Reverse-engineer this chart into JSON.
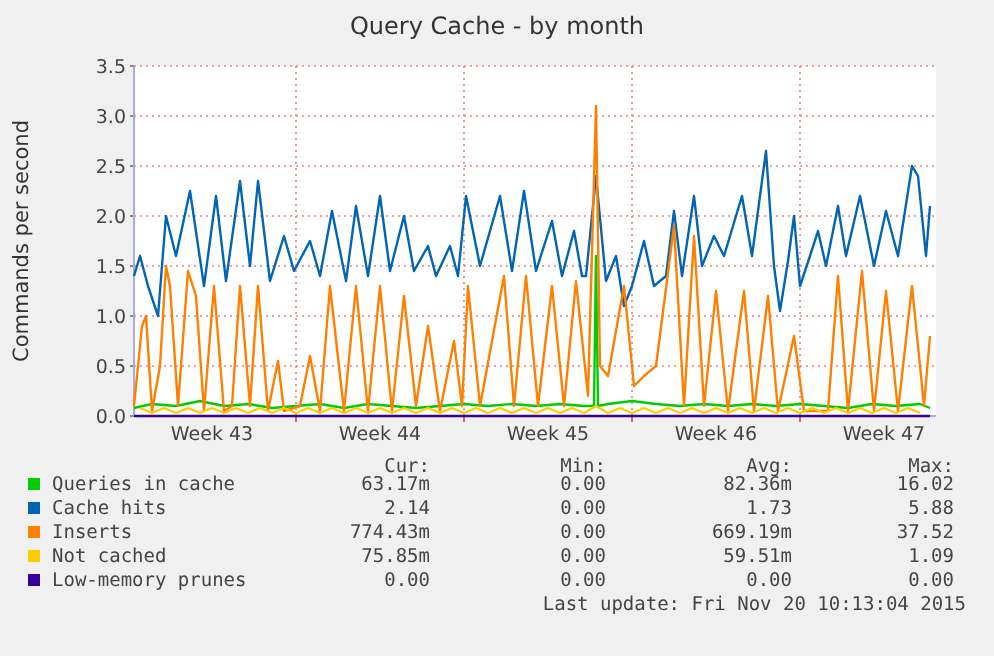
{
  "chart_data": {
    "type": "line",
    "title": "Query Cache - by month",
    "ylabel": "Commands per second",
    "xlim": [
      "2015-10-18T06:00",
      "2015-11-20T16:00"
    ],
    "ylim": [
      0,
      3.5
    ],
    "xticks": [
      {
        "value": "2015-10-21T12:00",
        "label": "Week 43"
      },
      {
        "value": "2015-10-25T00:00",
        "label": null
      },
      {
        "value": "2015-10-28T12:00",
        "label": "Week 44"
      },
      {
        "value": "2015-11-01T00:00",
        "label": null
      },
      {
        "value": "2015-11-04T12:00",
        "label": "Week 45"
      },
      {
        "value": "2015-11-08T00:00",
        "label": null
      },
      {
        "value": "2015-11-11T12:00",
        "label": "Week 46"
      },
      {
        "value": "2015-11-15T00:00",
        "label": null
      },
      {
        "value": "2015-11-18T12:00",
        "label": "Week 47"
      }
    ],
    "yticks": [
      {
        "value": 0,
        "label": "0.0"
      },
      0.5,
      {
        "value": 1,
        "label": "1.0"
      },
      1.5,
      {
        "value": 2,
        "label": "2.0"
      },
      2.5,
      {
        "value": 3,
        "label": "3.0"
      },
      3.5
    ],
    "grid": true,
    "legend": "bottom",
    "series": [
      {
        "name": "Queries in cache",
        "color": "#00cc00",
        "x": [
          "2015-10-18T06:00",
          "2015-10-19T00:00",
          "2015-10-20T00:00",
          "2015-10-21T00:00",
          "2015-10-22T00:00",
          "2015-10-23T00:00",
          "2015-10-24T00:00",
          "2015-10-25T00:00",
          "2015-10-26T00:00",
          "2015-10-27T00:00",
          "2015-10-28T00:00",
          "2015-10-29T00:00",
          "2015-10-30T00:00",
          "2015-10-31T00:00",
          "2015-11-01T00:00",
          "2015-11-02T00:00",
          "2015-11-03T00:00",
          "2015-11-04T00:00",
          "2015-11-05T00:00",
          "2015-11-06T00:00",
          "2015-11-06T10:00",
          "2015-11-06T12:00",
          "2015-11-06T14:00",
          "2015-11-07T00:00",
          "2015-11-08T00:00",
          "2015-11-09T00:00",
          "2015-11-10T00:00",
          "2015-11-11T00:00",
          "2015-11-12T00:00",
          "2015-11-13T00:00",
          "2015-11-14T00:00",
          "2015-11-15T00:00",
          "2015-11-16T00:00",
          "2015-11-17T00:00",
          "2015-11-18T00:00",
          "2015-11-19T00:00",
          "2015-11-20T00:00",
          "2015-11-20T10:00"
        ],
        "values": [
          0.08,
          0.12,
          0.1,
          0.15,
          0.1,
          0.12,
          0.08,
          0.1,
          0.12,
          0.08,
          0.12,
          0.1,
          0.08,
          0.1,
          0.12,
          0.1,
          0.12,
          0.1,
          0.12,
          0.1,
          0.1,
          1.6,
          0.1,
          0.12,
          0.15,
          0.12,
          0.1,
          0.12,
          0.1,
          0.12,
          0.1,
          0.12,
          0.1,
          0.08,
          0.12,
          0.1,
          0.12,
          0.08
        ]
      },
      {
        "name": "Cache hits",
        "color": "#0066b3",
        "x": [
          "2015-10-18T06:00",
          "2015-10-18T12:00",
          "2015-10-18T20:00",
          "2015-10-19T06:00",
          "2015-10-19T14:00",
          "2015-10-20T00:00",
          "2015-10-20T14:00",
          "2015-10-21T04:00",
          "2015-10-21T16:00",
          "2015-10-22T02:00",
          "2015-10-22T16:00",
          "2015-10-23T02:00",
          "2015-10-23T10:00",
          "2015-10-23T22:00",
          "2015-10-24T12:00",
          "2015-10-24T22:00",
          "2015-10-25T14:00",
          "2015-10-26T00:00",
          "2015-10-26T12:00",
          "2015-10-27T02:00",
          "2015-10-27T12:00",
          "2015-10-28T00:00",
          "2015-10-28T12:00",
          "2015-10-28T22:00",
          "2015-10-29T12:00",
          "2015-10-29T22:00",
          "2015-10-30T12:00",
          "2015-10-30T20:00",
          "2015-10-31T10:00",
          "2015-10-31T18:00",
          "2015-11-01T02:00",
          "2015-11-01T16:00",
          "2015-11-02T12:00",
          "2015-11-03T00:00",
          "2015-11-03T12:00",
          "2015-11-04T00:00",
          "2015-11-04T16:00",
          "2015-11-05T02:00",
          "2015-11-05T14:00",
          "2015-11-05T22:00",
          "2015-11-06T02:00",
          "2015-11-06T12:00",
          "2015-11-06T22:00",
          "2015-11-07T08:00",
          "2015-11-07T16:00",
          "2015-11-08T00:00",
          "2015-11-08T12:00",
          "2015-11-08T22:00",
          "2015-11-09T10:00",
          "2015-11-09T18:00",
          "2015-11-10T02:00",
          "2015-11-10T14:00",
          "2015-11-10T22:00",
          "2015-11-11T10:00",
          "2015-11-11T20:00",
          "2015-11-12T14:00",
          "2015-11-13T00:00",
          "2015-11-13T14:00",
          "2015-11-13T22:00",
          "2015-11-14T04:00",
          "2015-11-14T12:00",
          "2015-11-14T18:00",
          "2015-11-15T00:00",
          "2015-11-15T10:00",
          "2015-11-15T18:00",
          "2015-11-16T02:00",
          "2015-11-16T14:00",
          "2015-11-16T22:00",
          "2015-11-17T12:00",
          "2015-11-18T02:00",
          "2015-11-18T14:00",
          "2015-11-19T02:00",
          "2015-11-19T16:00",
          "2015-11-19T22:00",
          "2015-11-20T06:00",
          "2015-11-20T10:00"
        ],
        "values": [
          1.4,
          1.6,
          1.3,
          1.0,
          2.0,
          1.6,
          2.25,
          1.3,
          2.2,
          1.35,
          2.35,
          1.5,
          2.35,
          1.35,
          1.8,
          1.45,
          1.75,
          1.4,
          2.05,
          1.35,
          2.1,
          1.4,
          2.2,
          1.45,
          2.0,
          1.45,
          1.7,
          1.4,
          1.7,
          1.4,
          2.2,
          1.5,
          2.2,
          1.45,
          2.25,
          1.45,
          1.95,
          1.4,
          1.85,
          1.4,
          1.4,
          2.4,
          1.35,
          1.6,
          1.1,
          1.3,
          1.75,
          1.3,
          1.4,
          2.05,
          1.4,
          2.2,
          1.5,
          1.8,
          1.6,
          2.2,
          1.6,
          2.65,
          1.5,
          1.05,
          1.55,
          2.0,
          1.3,
          1.6,
          1.85,
          1.5,
          2.1,
          1.6,
          2.2,
          1.5,
          2.05,
          1.6,
          2.5,
          2.4,
          1.6,
          2.1
        ]
      },
      {
        "name": "Inserts",
        "color": "#ff8000",
        "x": [
          "2015-10-18T06:00",
          "2015-10-18T14:00",
          "2015-10-18T18:00",
          "2015-10-19T00:00",
          "2015-10-19T08:00",
          "2015-10-19T14:00",
          "2015-10-19T18:00",
          "2015-10-20T02:00",
          "2015-10-20T12:00",
          "2015-10-20T20:00",
          "2015-10-21T04:00",
          "2015-10-21T14:00",
          "2015-10-22T00:00",
          "2015-10-22T08:00",
          "2015-10-22T16:00",
          "2015-10-23T02:00",
          "2015-10-23T10:00",
          "2015-10-23T20:00",
          "2015-10-24T06:00",
          "2015-10-24T12:00",
          "2015-10-25T04:00",
          "2015-10-25T14:00",
          "2015-10-26T00:00",
          "2015-10-26T10:00",
          "2015-10-27T00:00",
          "2015-10-27T12:00",
          "2015-10-28T00:00",
          "2015-10-28T12:00",
          "2015-10-29T00:00",
          "2015-10-29T12:00",
          "2015-10-30T00:00",
          "2015-10-30T12:00",
          "2015-10-31T00:00",
          "2015-10-31T14:00",
          "2015-10-31T22:00",
          "2015-11-01T04:00",
          "2015-11-01T16:00",
          "2015-11-02T16:00",
          "2015-11-03T02:00",
          "2015-11-03T14:00",
          "2015-11-04T02:00",
          "2015-11-04T16:00",
          "2015-11-05T04:00",
          "2015-11-05T16:00",
          "2015-11-06T04:00",
          "2015-11-06T12:00",
          "2015-11-06T16:00",
          "2015-11-07T00:00",
          "2015-11-07T16:00",
          "2015-11-08T02:00",
          "2015-11-08T12:00",
          "2015-11-09T00:00",
          "2015-11-09T18:00",
          "2015-11-10T04:00",
          "2015-11-10T14:00",
          "2015-11-11T00:00",
          "2015-11-11T12:00",
          "2015-11-12T00:00",
          "2015-11-12T16:00",
          "2015-11-13T02:00",
          "2015-11-13T16:00",
          "2015-11-14T02:00",
          "2015-11-14T18:00",
          "2015-11-15T04:00",
          "2015-11-16T04:00",
          "2015-11-16T14:00",
          "2015-11-17T00:00",
          "2015-11-17T14:00",
          "2015-11-18T02:00",
          "2015-11-18T14:00",
          "2015-11-19T02:00",
          "2015-11-19T16:00",
          "2015-11-20T04:00",
          "2015-11-20T10:00"
        ],
        "values": [
          0.1,
          0.9,
          1.0,
          0.05,
          0.5,
          1.5,
          1.3,
          0.1,
          1.45,
          1.2,
          0.05,
          1.3,
          0.05,
          0.1,
          1.3,
          0.1,
          1.3,
          0.05,
          0.55,
          0.05,
          0.1,
          0.6,
          0.05,
          1.3,
          0.05,
          1.3,
          0.05,
          1.3,
          0.05,
          1.2,
          0.1,
          0.9,
          0.05,
          0.75,
          0.1,
          1.3,
          0.1,
          1.4,
          0.1,
          1.4,
          0.1,
          1.3,
          0.1,
          1.35,
          0.2,
          3.1,
          0.5,
          0.4,
          1.3,
          0.3,
          0.4,
          0.5,
          1.9,
          0.1,
          1.8,
          0.1,
          1.25,
          0.05,
          1.25,
          0.05,
          1.2,
          0.05,
          0.8,
          0.05,
          0.05,
          1.4,
          0.05,
          1.45,
          0.05,
          1.25,
          0.05,
          1.3,
          0.1,
          0.8
        ]
      },
      {
        "name": "Not cached",
        "color": "#ffcc00",
        "x": [
          "2015-10-18T12:00",
          "2015-10-19T00:00",
          "2015-10-19T12:00",
          "2015-10-20T00:00",
          "2015-10-20T12:00",
          "2015-10-21T00:00",
          "2015-10-21T12:00",
          "2015-10-22T00:00",
          "2015-10-22T12:00",
          "2015-10-23T00:00",
          "2015-10-23T12:00",
          "2015-10-24T00:00",
          "2015-10-24T12:00",
          "2015-10-25T00:00",
          "2015-10-25T12:00",
          "2015-10-26T00:00",
          "2015-10-26T12:00",
          "2015-10-27T00:00",
          "2015-10-27T12:00",
          "2015-10-28T00:00",
          "2015-10-28T12:00",
          "2015-10-29T00:00",
          "2015-10-29T12:00",
          "2015-10-30T00:00",
          "2015-10-30T12:00",
          "2015-10-31T00:00",
          "2015-10-31T12:00",
          "2015-11-01T00:00",
          "2015-11-01T12:00",
          "2015-11-02T00:00",
          "2015-11-02T12:00",
          "2015-11-03T00:00",
          "2015-11-03T12:00",
          "2015-11-04T00:00",
          "2015-11-04T12:00",
          "2015-11-05T00:00",
          "2015-11-05T12:00",
          "2015-11-06T00:00",
          "2015-11-06T12:00",
          "2015-11-07T00:00",
          "2015-11-07T12:00",
          "2015-11-08T00:00",
          "2015-11-08T12:00",
          "2015-11-09T00:00",
          "2015-11-09T12:00",
          "2015-11-10T00:00",
          "2015-11-10T12:00",
          "2015-11-11T00:00",
          "2015-11-11T12:00",
          "2015-11-12T00:00",
          "2015-11-12T12:00",
          "2015-11-13T00:00",
          "2015-11-13T12:00",
          "2015-11-14T00:00",
          "2015-11-14T12:00",
          "2015-11-15T00:00",
          "2015-11-15T12:00",
          "2015-11-16T00:00",
          "2015-11-16T12:00",
          "2015-11-17T00:00",
          "2015-11-17T12:00",
          "2015-11-18T00:00",
          "2015-11-18T12:00",
          "2015-11-19T00:00",
          "2015-11-19T12:00",
          "2015-11-20T00:00"
        ],
        "values": [
          0.08,
          0.03,
          0.08,
          0.03,
          0.08,
          0.03,
          0.08,
          0.03,
          0.08,
          0.03,
          0.08,
          0.03,
          0.08,
          0.03,
          0.08,
          0.03,
          0.08,
          0.03,
          0.08,
          0.03,
          0.08,
          0.03,
          0.08,
          0.03,
          0.08,
          0.03,
          0.08,
          0.03,
          0.08,
          0.03,
          0.08,
          0.03,
          0.08,
          0.03,
          0.08,
          0.03,
          0.08,
          0.03,
          0.1,
          0.03,
          0.08,
          0.03,
          0.08,
          0.03,
          0.08,
          0.03,
          0.08,
          0.03,
          0.08,
          0.03,
          0.08,
          0.03,
          0.08,
          0.03,
          0.08,
          0.03,
          0.08,
          0.03,
          0.08,
          0.03,
          0.08,
          0.03,
          0.08,
          0.03,
          0.08,
          0.03
        ]
      },
      {
        "name": "Low-memory prunes",
        "color": "#330099",
        "x": [
          "2015-10-18T06:00",
          "2015-11-20T10:00"
        ],
        "values": [
          0,
          0
        ]
      }
    ],
    "annotations": [
      "Cur:",
      "Min:",
      "Avg:",
      "Max:",
      "63.17m",
      "0.00",
      "82.36m",
      "16.02",
      "2.14",
      "0.00",
      "1.73",
      "5.88",
      "774.43m",
      "0.00",
      "669.19m",
      "37.52",
      "75.85m",
      "0.00",
      "59.51m",
      "1.09",
      "0.00",
      "0.00",
      "0.00",
      "0.00",
      "Last update: Fri Nov 20 10:13:04 2015"
    ]
  }
}
